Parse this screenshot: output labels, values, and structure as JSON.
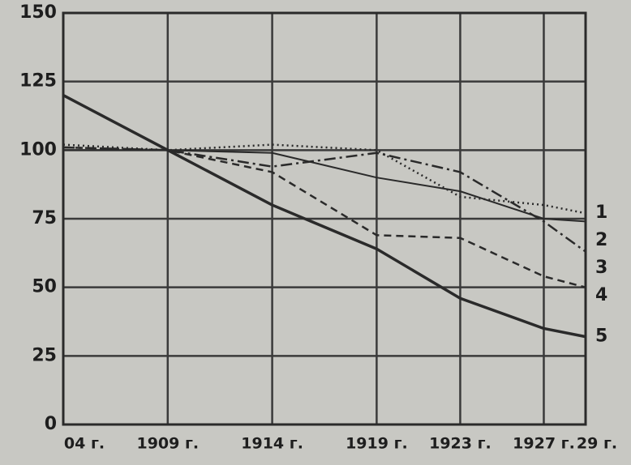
{
  "chart_data": {
    "type": "line",
    "x": [
      1904,
      1909,
      1914,
      1919,
      1923,
      1927,
      1929
    ],
    "xlim": [
      1904,
      1929
    ],
    "xticks": [
      {
        "value": 1904,
        "label": "04 г."
      },
      {
        "value": 1909,
        "label": "1909 г."
      },
      {
        "value": 1914,
        "label": "1914 г."
      },
      {
        "value": 1919,
        "label": "1919 г."
      },
      {
        "value": 1923,
        "label": "1923 г."
      },
      {
        "value": 1927,
        "label": "1927 г."
      },
      {
        "value": 1929,
        "label": "29 г."
      }
    ],
    "ylim": [
      0,
      150
    ],
    "yticks": [
      0,
      25,
      50,
      75,
      100,
      125,
      150
    ],
    "grid": true,
    "series": [
      {
        "name": "1",
        "color": "#2a2a2a",
        "style": "dotted",
        "values": [
          102,
          100,
          102,
          100,
          83,
          80,
          77
        ]
      },
      {
        "name": "2",
        "color": "#2a2a2a",
        "style": "solid",
        "values": [
          100,
          100,
          99,
          90,
          85,
          75,
          74
        ]
      },
      {
        "name": "3",
        "color": "#2a2a2a",
        "style": "dashdot",
        "values": [
          101,
          100,
          94,
          99,
          92,
          74,
          63
        ]
      },
      {
        "name": "4",
        "color": "#2a2a2a",
        "style": "dashed",
        "values": [
          101,
          100,
          92,
          69,
          68,
          54,
          50
        ]
      },
      {
        "name": "5",
        "color": "#2a2a2a",
        "style": "thick",
        "values": [
          120,
          100,
          80,
          64,
          46,
          35,
          32
        ]
      }
    ]
  }
}
